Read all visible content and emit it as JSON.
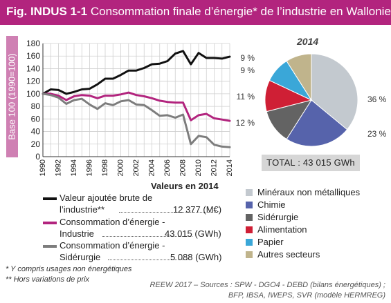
{
  "header": {
    "fig_label": "Fig. INDUS 1-1",
    "title": "Consommation finale d’énergie* de l’industrie en Wallonie"
  },
  "line_chart": {
    "ylabel": "Base 100 (1990=100)",
    "section_title": "Valeurs en 2014",
    "legend": [
      {
        "line1": "Valeur ajoutée brute de",
        "line2": "l’industrie**",
        "value": "12 377 (M€)",
        "color": "#111111"
      },
      {
        "line1": "Consommation d’énergie -",
        "line2": "Industrie",
        "value": "43 015 (GWh)",
        "color": "#b2247e"
      },
      {
        "line1": "Consommation d’énergie -",
        "line2": "Sidérurgie",
        "value": "5 088 (GWh)",
        "color": "#7d7d7d"
      }
    ]
  },
  "pie_chart": {
    "year": "2014",
    "total": "TOTAL : 43 015 GWh",
    "legend": [
      {
        "label": "Minéraux non métalliques",
        "color": "#c3c9cf"
      },
      {
        "label": "Chimie",
        "color": "#5663ab"
      },
      {
        "label": "Sidérurgie",
        "color": "#636363"
      },
      {
        "label": "Alimentation",
        "color": "#cf1f35"
      },
      {
        "label": "Papier",
        "color": "#3aa7d8"
      },
      {
        "label": "Autres secteurs",
        "color": "#c0b48c"
      }
    ]
  },
  "footnotes": {
    "note1": "* Y compris usages non énergétiques",
    "note2": "** Hors variations de prix"
  },
  "source": {
    "line1": "REEW 2017 – Sources : SPW - DGO4 - DEBD (bilans énergétiques) ;",
    "line2": "BFP, IBSA, IWEPS, SVR (modèle HERMREG)"
  },
  "chart_data": [
    {
      "type": "line",
      "title": "",
      "xlabel": "",
      "ylabel": "Base 100 (1990=100)",
      "x": [
        1990,
        1991,
        1992,
        1993,
        1994,
        1995,
        1996,
        1997,
        1998,
        1999,
        2000,
        2001,
        2002,
        2003,
        2004,
        2005,
        2006,
        2007,
        2008,
        2009,
        2010,
        2011,
        2012,
        2013,
        2014
      ],
      "x_ticks": [
        1990,
        1992,
        1994,
        1996,
        1998,
        2000,
        2002,
        2004,
        2006,
        2008,
        2010,
        2012,
        2014
      ],
      "ylim": [
        0,
        180
      ],
      "y_ticks": [
        0,
        20,
        40,
        60,
        80,
        100,
        120,
        140,
        160,
        180
      ],
      "grid": true,
      "series": [
        {
          "name": "Valeur ajoutée brute de l’industrie**",
          "color": "#111111",
          "values": [
            100,
            107,
            106,
            100,
            103,
            107,
            108,
            115,
            124,
            124,
            130,
            137,
            137,
            141,
            147,
            148,
            152,
            164,
            168,
            147,
            165,
            157,
            157,
            156,
            159
          ]
        },
        {
          "name": "Consommation d’énergie - Industrie",
          "color": "#b2247e",
          "values": [
            100,
            100,
            97,
            90,
            96,
            98,
            97,
            93,
            97,
            97,
            99,
            102,
            98,
            96,
            93,
            89,
            87,
            86,
            86,
            58,
            66,
            68,
            61,
            59,
            57
          ]
        },
        {
          "name": "Consommation d’énergie - Sidérurgie",
          "color": "#7d7d7d",
          "values": [
            100,
            98,
            94,
            84,
            90,
            92,
            83,
            76,
            85,
            82,
            88,
            90,
            83,
            82,
            74,
            65,
            66,
            62,
            67,
            20,
            33,
            31,
            19,
            16,
            15
          ]
        }
      ]
    },
    {
      "type": "pie",
      "title": "2014",
      "total": "TOTAL : 43 015 GWh",
      "labels": [
        "Minéraux non métalliques",
        "Chimie",
        "Sidérurgie",
        "Alimentation",
        "Papier",
        "Autres secteurs"
      ],
      "values": [
        36,
        23,
        12,
        11,
        9,
        9
      ],
      "value_labels": [
        "36 %",
        "23 %",
        "12 %",
        "11 %",
        "9 %",
        "9 %"
      ],
      "colors": [
        "#c3c9cf",
        "#5663ab",
        "#636363",
        "#cf1f35",
        "#3aa7d8",
        "#c0b48c"
      ],
      "legend_placement": "bottom"
    }
  ]
}
